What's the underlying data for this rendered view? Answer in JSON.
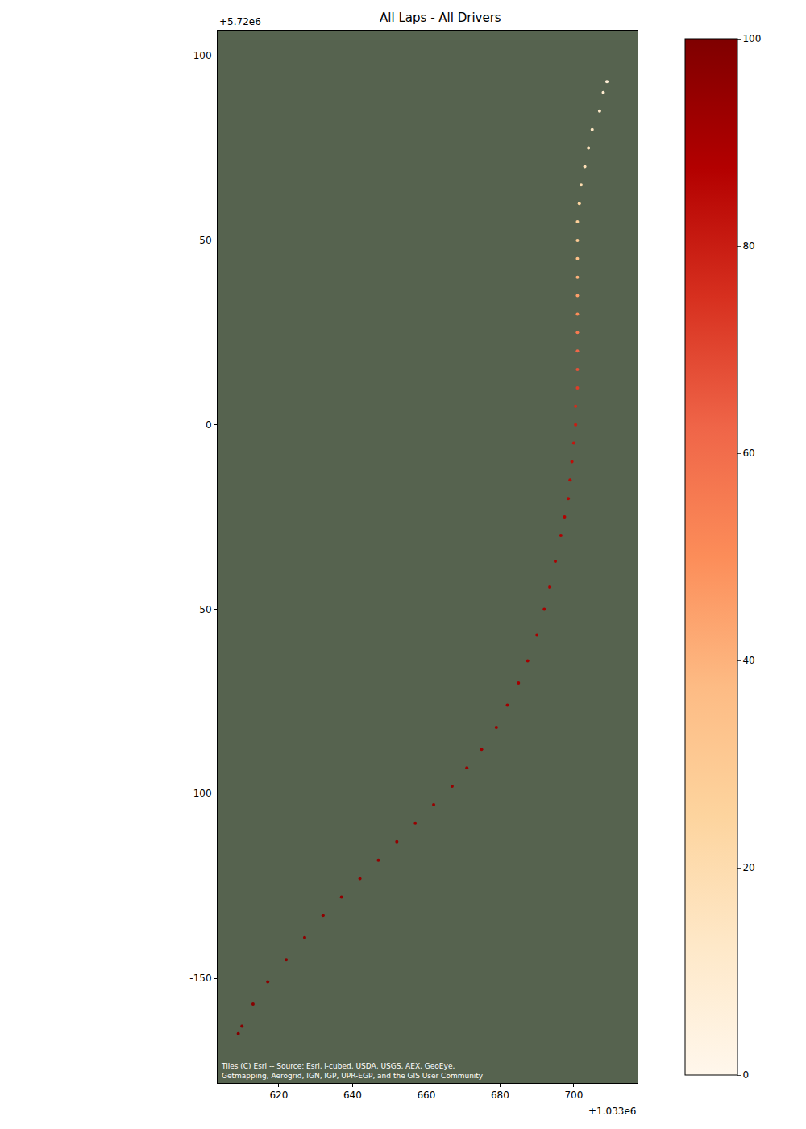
{
  "chart_data": {
    "type": "scatter",
    "title": "All Laps - All Drivers",
    "marker": "circle",
    "x": [
      709,
      708,
      707,
      705,
      704,
      703,
      702,
      701.5,
      701,
      701,
      701,
      701,
      701,
      701,
      701,
      701,
      701,
      701,
      700.5,
      700.5,
      700,
      699.5,
      699,
      698.5,
      697.5,
      696.5,
      695,
      693.5,
      692,
      690,
      687.5,
      685,
      682,
      679,
      675,
      671,
      667,
      662,
      657,
      652,
      647,
      642,
      637,
      632,
      627,
      622,
      617,
      613,
      610,
      609
    ],
    "y": [
      93,
      90,
      85,
      80,
      75,
      70,
      65,
      60,
      55,
      50,
      45,
      40,
      35,
      30,
      25,
      20,
      15,
      10,
      5,
      0,
      -5,
      -10,
      -15,
      -20,
      -25,
      -30,
      -37,
      -44,
      -50,
      -57,
      -64,
      -70,
      -76,
      -82,
      -88,
      -93,
      -98,
      -103,
      -108,
      -113,
      -118,
      -123,
      -128,
      -133,
      -139,
      -145,
      -151,
      -157,
      -163,
      -165
    ],
    "values": [
      8,
      10,
      12,
      14,
      16,
      18,
      20,
      24,
      27,
      30,
      35,
      40,
      45,
      50,
      56,
      62,
      67,
      72,
      76,
      80,
      82,
      84,
      85,
      86,
      87,
      88,
      89,
      89,
      90,
      90,
      91,
      91,
      92,
      92,
      93,
      93,
      94,
      94,
      94,
      95,
      95,
      95,
      96,
      96,
      96,
      97,
      97,
      98,
      98,
      99
    ],
    "xlim": [
      603.4,
      717.3
    ],
    "ylim": [
      -178.4,
      106.8
    ],
    "xticks": [
      620,
      640,
      660,
      680,
      700
    ],
    "yticks": [
      -150,
      -100,
      -50,
      0,
      50,
      100
    ],
    "colorbar": {
      "range": [
        0,
        100
      ],
      "ticks": [
        0,
        20,
        40,
        60,
        80,
        100
      ]
    },
    "x_offset_text": "+1.033e6",
    "y_offset_text": "+5.72e6",
    "attribution": [
      "Tiles (C) Esri -- Source: Esri, i-cubed, USDA, USGS, AEX, GeoEye,",
      "Getmapping, Aerogrid, IGN, IGP, UPR-EGP, and the GIS User Community"
    ]
  }
}
